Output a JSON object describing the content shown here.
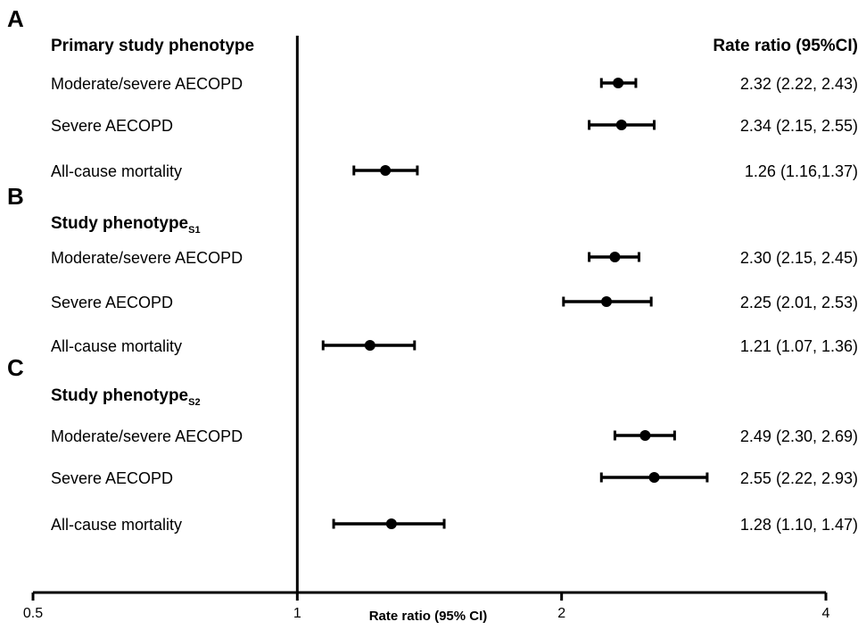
{
  "chart_data": {
    "type": "forest",
    "xlabel": "Rate ratio (95% CI)",
    "x_scale": "log",
    "xlim": [
      0.5,
      4
    ],
    "x_ticks": [
      0.5,
      1,
      2,
      4
    ],
    "x_tick_labels": [
      "0.5",
      "1",
      "2",
      "4"
    ],
    "reference_line": 1,
    "value_column_header": "Rate ratio (95%CI)",
    "panels": [
      {
        "letter": "A",
        "heading": "Primary study phenotype",
        "heading_sub": "",
        "rows": [
          {
            "label": "Moderate/severe AECOPD",
            "estimate": 2.32,
            "lower": 2.22,
            "upper": 2.43,
            "text": "2.32 (2.22, 2.43)"
          },
          {
            "label": "Severe AECOPD",
            "estimate": 2.34,
            "lower": 2.15,
            "upper": 2.55,
            "text": "2.34 (2.15, 2.55)"
          },
          {
            "label": "All-cause mortality",
            "estimate": 1.26,
            "lower": 1.16,
            "upper": 1.37,
            "text": "1.26 (1.16,1.37)"
          }
        ]
      },
      {
        "letter": "B",
        "heading": "Study phenotype",
        "heading_sub": "S1",
        "rows": [
          {
            "label": "Moderate/severe AECOPD",
            "estimate": 2.3,
            "lower": 2.15,
            "upper": 2.45,
            "text": "2.30 (2.15, 2.45)"
          },
          {
            "label": "Severe AECOPD",
            "estimate": 2.25,
            "lower": 2.01,
            "upper": 2.53,
            "text": "2.25 (2.01, 2.53)"
          },
          {
            "label": "All-cause mortality",
            "estimate": 1.21,
            "lower": 1.07,
            "upper": 1.36,
            "text": "1.21 (1.07, 1.36)"
          }
        ]
      },
      {
        "letter": "C",
        "heading": "Study phenotype",
        "heading_sub": "S2",
        "rows": [
          {
            "label": "Moderate/severe AECOPD",
            "estimate": 2.49,
            "lower": 2.3,
            "upper": 2.69,
            "text": "2.49 (2.30, 2.69)"
          },
          {
            "label": "Severe AECOPD",
            "estimate": 2.55,
            "lower": 2.22,
            "upper": 2.93,
            "text": "2.55 (2.22, 2.93)"
          },
          {
            "label": "All-cause mortality",
            "estimate": 1.28,
            "lower": 1.1,
            "upper": 1.47,
            "text": "1.28 (1.10, 1.47)"
          }
        ]
      }
    ]
  }
}
